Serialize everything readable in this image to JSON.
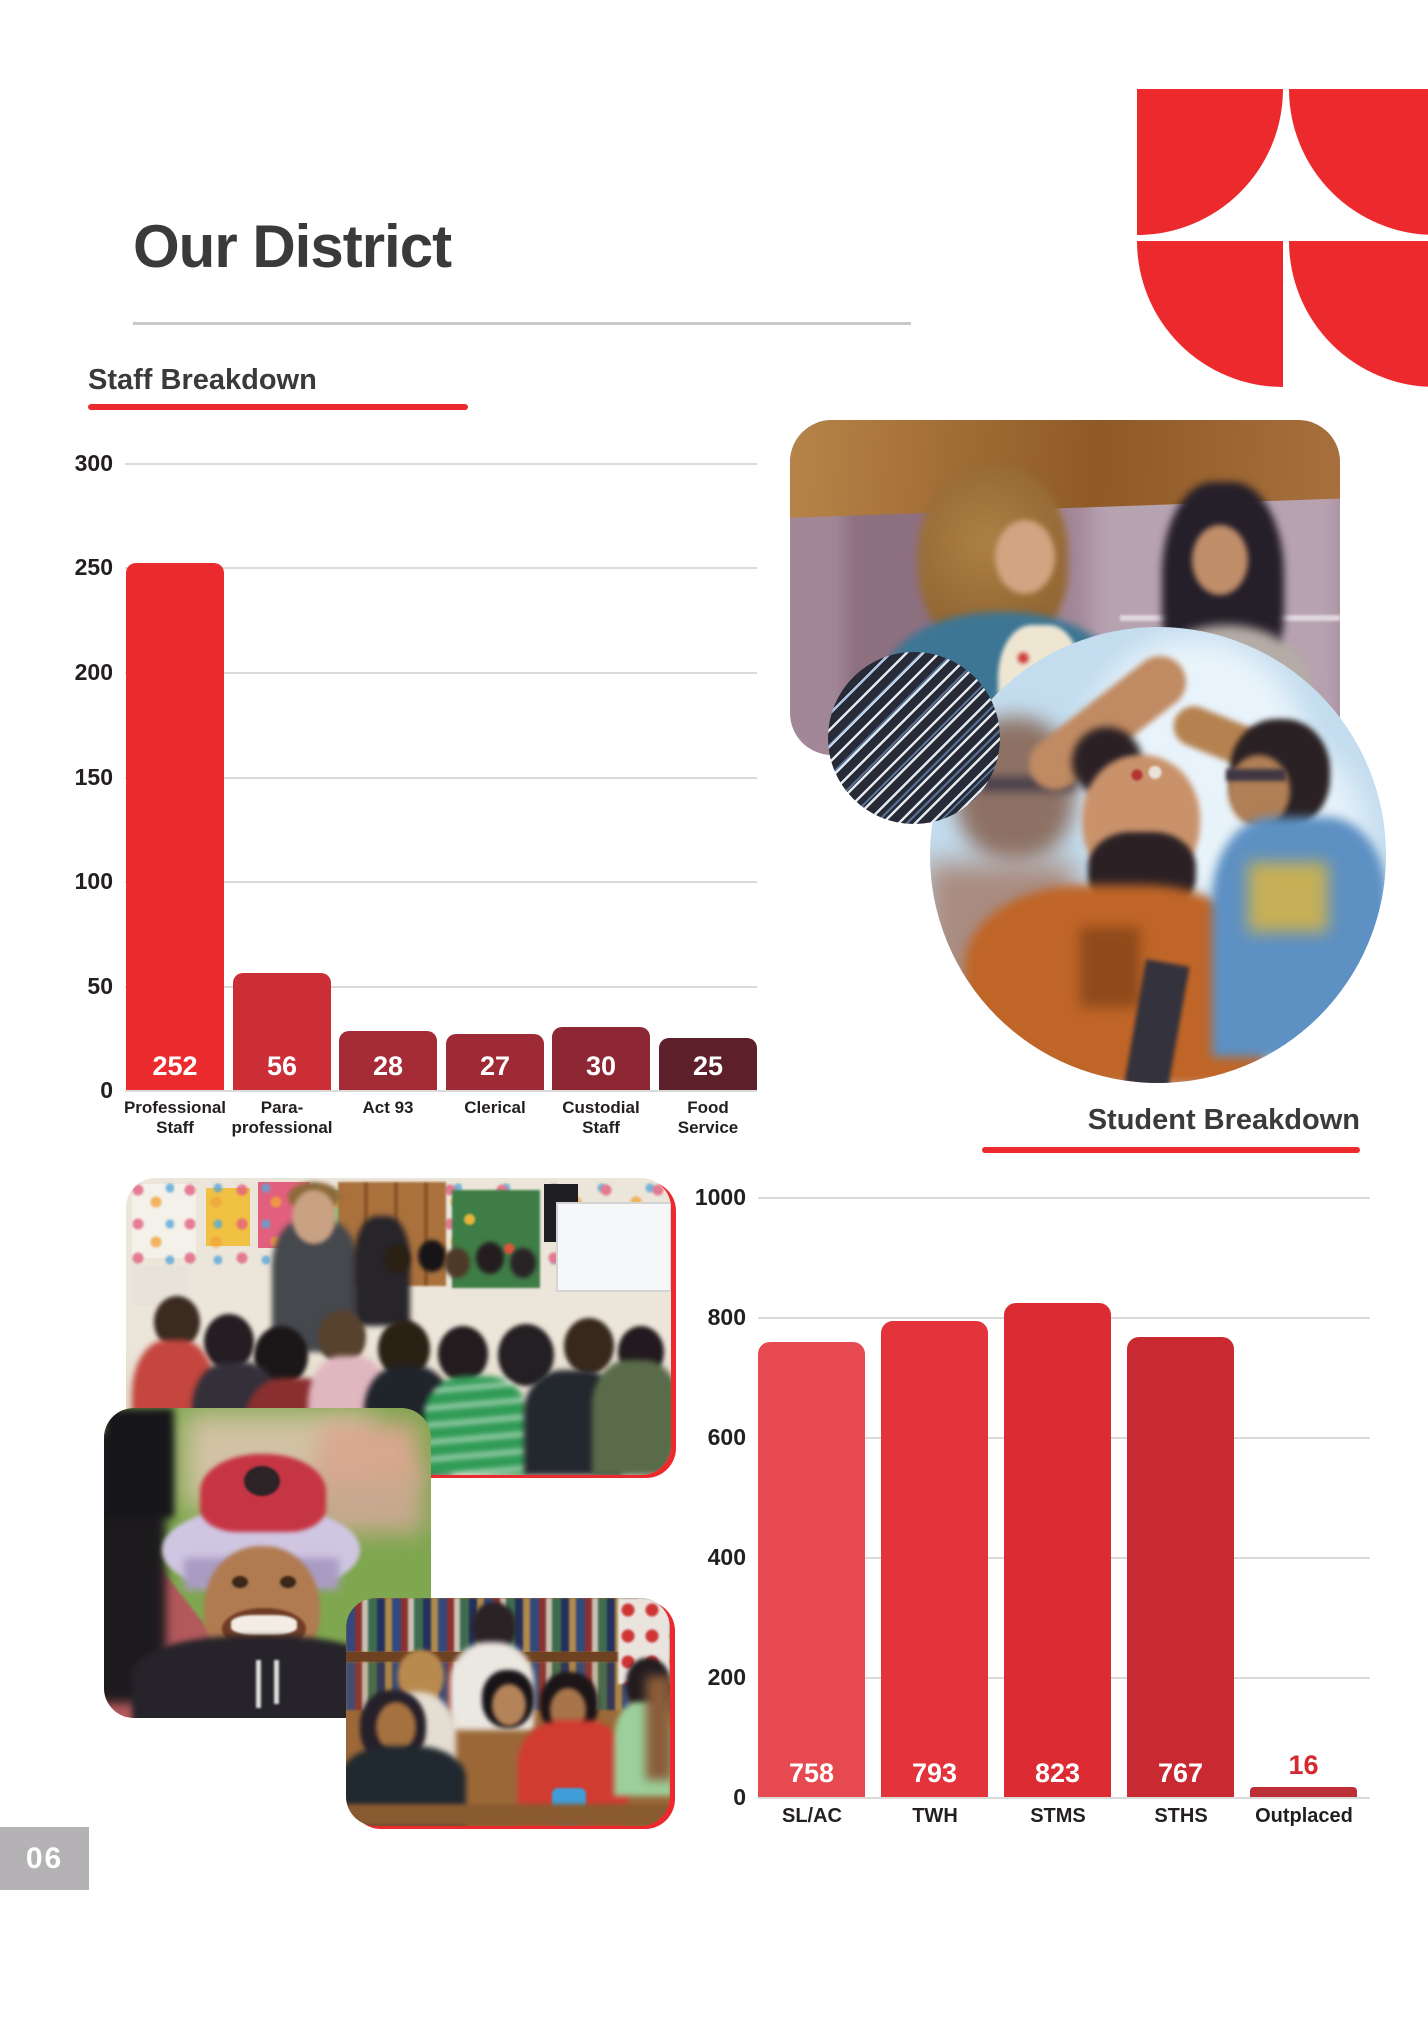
{
  "page": {
    "title": "Our District",
    "page_number": "06"
  },
  "sections": {
    "staff_heading": "Staff Breakdown",
    "student_heading": "Student Breakdown"
  },
  "colors": {
    "accent_red": "#ec2a2e",
    "title_text": "#3a393b",
    "axis_text": "#231f20",
    "grid": "#dadada",
    "title_rule": "#c9c9c9",
    "badge_bg": "#b5b2b5",
    "value_text": "#ffffff",
    "outside_value_text": "#d42931"
  },
  "photos": [
    {
      "name": "board-meeting-photo",
      "alt": "Two women standing at a district meeting"
    },
    {
      "name": "striped-circle-graphic",
      "alt": "Dark circle with diagonal stripes"
    },
    {
      "name": "face-painting-photo",
      "alt": "Student painting a smiling teacher's face"
    },
    {
      "name": "classroom-photo",
      "alt": "Students gathered in an elementary classroom"
    },
    {
      "name": "smiling-child-photo",
      "alt": "Smiling child wearing a spider hat outdoors"
    },
    {
      "name": "library-group-photo",
      "alt": "Students laughing together in the library"
    }
  ],
  "chart_data": [
    {
      "id": "staff",
      "type": "bar",
      "title": "Staff Breakdown",
      "categories": [
        [
          "Professional",
          "Staff"
        ],
        [
          "Para-",
          "professional"
        ],
        [
          "Act 93"
        ],
        [
          "Clerical"
        ],
        [
          "Custodial",
          "Staff"
        ],
        [
          "Food",
          "Service"
        ]
      ],
      "values": [
        252,
        56,
        28,
        27,
        30,
        25
      ],
      "bar_colors": [
        "#ec2b2f",
        "#cb2e36",
        "#a52b37",
        "#9d2a35",
        "#8c2733",
        "#5d202a"
      ],
      "xlabel": "",
      "ylabel": "",
      "ylim": [
        0,
        300
      ],
      "yticks": [
        300,
        250,
        200,
        150,
        100,
        50,
        0
      ],
      "grid": true,
      "legend": false,
      "value_label_position": "inside-bottom"
    },
    {
      "id": "student",
      "type": "bar",
      "title": "Student Breakdown",
      "categories": [
        [
          "SL/AC"
        ],
        [
          "TWH"
        ],
        [
          "STMS"
        ],
        [
          "STHS"
        ],
        [
          "Outplaced"
        ]
      ],
      "values": [
        758,
        793,
        823,
        767,
        16
      ],
      "bar_colors": [
        "#e64a50",
        "#e3343c",
        "#dd2b33",
        "#c92931",
        "#bb2f36"
      ],
      "xlabel": "",
      "ylabel": "",
      "ylim": [
        0,
        1000
      ],
      "yticks": [
        1000,
        800,
        600,
        400,
        200,
        0
      ],
      "grid": true,
      "legend": false,
      "value_label_position": "inside-bottom-or-above-small-bars"
    }
  ]
}
